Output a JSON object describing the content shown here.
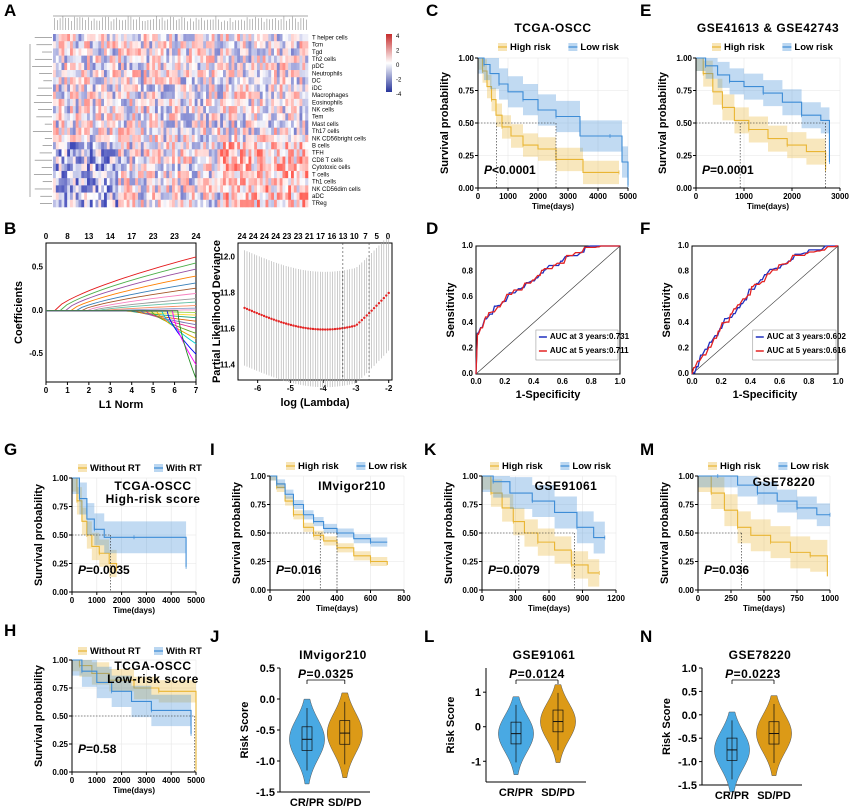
{
  "panel_labels": [
    "A",
    "B",
    "C",
    "D",
    "E",
    "F",
    "G",
    "H",
    "I",
    "J",
    "K",
    "L",
    "M",
    "N"
  ],
  "colors": {
    "high": "#e9b533",
    "low": "#3d8cd6",
    "without_rt": "#e9b533",
    "with_rt": "#3d8cd6",
    "roc3": "#1f2fbf",
    "roc5": "#e32222",
    "violin_low": "#49a9e3",
    "violin_high": "#dc9a17",
    "heat_pos": "#c62c2c",
    "heat_neg": "#27349a"
  },
  "heatmap": {
    "rows": [
      "T helper cells",
      "Tcm",
      "Tgd",
      "Th2 cells",
      "pDC",
      "Neutrophils",
      "DC",
      "iDC",
      "Macrophages",
      "Eosinophils",
      "NK cells",
      "Tem",
      "Mast cells",
      "Th17 cells",
      "NK CD56bright cells",
      "B cells",
      "TFH",
      "CD8 T cells",
      "Cytotoxic cells",
      "T cells",
      "Th1 cells",
      "NK CD56dim cells",
      "aDC",
      "TReg"
    ],
    "scale_ticks": [
      "4",
      "2",
      "0",
      "-2",
      "-4"
    ]
  },
  "lasso_coef": {
    "top_ticks": [
      "0",
      "8",
      "13",
      "14",
      "17",
      "23",
      "23",
      "24"
    ],
    "x_ticks": [
      "0",
      "1",
      "2",
      "3",
      "4",
      "5",
      "6",
      "7"
    ],
    "y_ticks": [
      "0.5",
      "0.0",
      "-0.5"
    ],
    "xlabel": "L1 Norm",
    "ylabel": "Coefficients"
  },
  "lasso_cv": {
    "top_ticks": [
      "24",
      "24",
      "24",
      "24",
      "23",
      "23",
      "21",
      "17",
      "16",
      "13",
      "10",
      "7",
      "5",
      "0"
    ],
    "x_ticks": [
      "-6",
      "-5",
      "-4",
      "-3",
      "-2"
    ],
    "y_ticks": [
      "12.0",
      "11.8",
      "11.6",
      "11.4"
    ],
    "xlabel": "log (Lambda)",
    "ylabel": "Partial Likelihood Deviance"
  },
  "km": {
    "C": {
      "title": "TCGA-OSCC",
      "legend": [
        "High risk",
        "Low risk"
      ],
      "pval": "<0.0001",
      "x_ticks": [
        "0",
        "1000",
        "2000",
        "3000",
        "4000",
        "5000"
      ],
      "xmax": 5000,
      "xlabel": "Time(days)",
      "ylabel": "Survival probability",
      "y_ticks": [
        "0.00",
        "0.25",
        "0.50",
        "0.75",
        "1.00"
      ]
    },
    "E": {
      "title": "GSE41613 & GSE42743",
      "legend": [
        "High risk",
        "Low risk"
      ],
      "pval": "=0.0001",
      "x_ticks": [
        "0",
        "1000",
        "2000",
        "3000"
      ],
      "xmax": 3000,
      "xlabel": "Time(days)",
      "ylabel": "Survival probability",
      "y_ticks": [
        "0.00",
        "0.25",
        "0.50",
        "0.75",
        "1.00"
      ]
    },
    "G": {
      "title": "",
      "legend": [
        "Without RT",
        "With RT"
      ],
      "inset": [
        "TCGA-OSCC",
        "High-risk score"
      ],
      "pval": "=0.0035",
      "x_ticks": [
        "0",
        "1000",
        "2000",
        "3000",
        "4000",
        "5000"
      ],
      "xmax": 5000,
      "xlabel": "Time(days)",
      "ylabel": "Survival probability",
      "y_ticks": [
        "0.00",
        "0.25",
        "0.50",
        "0.75",
        "1.00"
      ]
    },
    "H": {
      "title": "",
      "legend": [
        "Without RT",
        "With RT"
      ],
      "inset": [
        "TCGA-OSCC",
        "Low-risk score"
      ],
      "pval": "=0.58",
      "x_ticks": [
        "0",
        "1000",
        "2000",
        "3000",
        "4000",
        "5000"
      ],
      "xmax": 5000,
      "xlabel": "Time(days)",
      "ylabel": "Survival probability",
      "y_ticks": [
        "0.00",
        "0.25",
        "0.50",
        "0.75",
        "1.00"
      ]
    },
    "I": {
      "title": "",
      "legend": [
        "High risk",
        "Low risk"
      ],
      "inset": [
        "IMvigor210"
      ],
      "pval": "=0.016",
      "x_ticks": [
        "0",
        "200",
        "400",
        "600",
        "800"
      ],
      "xmax": 800,
      "xlabel": "Time(days)",
      "ylabel": "Survival probability",
      "y_ticks": [
        "0.00",
        "0.25",
        "0.50",
        "0.75",
        "1.00"
      ]
    },
    "K": {
      "title": "",
      "legend": [
        "High risk",
        "Low risk"
      ],
      "inset": [
        "GSE91061"
      ],
      "pval": "=0.0079",
      "x_ticks": [
        "0",
        "300",
        "600",
        "900",
        "1200"
      ],
      "xmax": 1200,
      "xlabel": "Time(days)",
      "ylabel": "Survival probability",
      "y_ticks": [
        "0.00",
        "0.25",
        "0.50",
        "0.75",
        "1.00"
      ]
    },
    "M": {
      "title": "",
      "legend": [
        "High risk",
        "Low risk"
      ],
      "inset": [
        "GSE78220"
      ],
      "pval": "=0.036",
      "x_ticks": [
        "0",
        "250",
        "500",
        "750",
        "1000"
      ],
      "xmax": 1000,
      "xlabel": "Time(days)",
      "ylabel": "Survival probability",
      "y_ticks": [
        "0.00",
        "0.25",
        "0.50",
        "0.75",
        "1.00"
      ]
    }
  },
  "roc": {
    "D": {
      "xlabel": "1-Specificity",
      "ylabel": "Sensitivity",
      "ticks": [
        "0.0",
        "0.2",
        "0.4",
        "0.6",
        "0.8",
        "1.0"
      ],
      "legend": [
        "AUC at 3 years:0.731",
        "AUC at 5 years:0.711"
      ]
    },
    "F": {
      "xlabel": "1-Specificity",
      "ylabel": "Sensitivity",
      "ticks": [
        "0.0",
        "0.2",
        "0.4",
        "0.6",
        "0.8",
        "1.0"
      ],
      "legend": [
        "AUC at 3 years:0.602",
        "AUC at 5 years:0.616"
      ]
    }
  },
  "violin": {
    "J": {
      "title": "IMvigor210",
      "pval": "=0.0325",
      "groups": [
        "CR/PR",
        "SD/PD"
      ],
      "ylabel": "Risk Score",
      "y_ticks": [
        "0.5",
        "0.0",
        "-0.5",
        "-1.0",
        "-1.5"
      ],
      "ymin": -1.5,
      "ymax": 0.5,
      "medians": [
        -0.65,
        -0.55
      ]
    },
    "L": {
      "title": "GSE91061",
      "pval": "=0.0124",
      "groups": [
        "CR/PR",
        "SD/PD"
      ],
      "ylabel": "Risk Score",
      "y_ticks": [
        "1",
        "0",
        "-1"
      ],
      "ymin": -1.6,
      "ymax": 1.7,
      "medians": [
        -0.2,
        0.15
      ]
    },
    "N": {
      "title": "GSE78220",
      "pval": "=0.0223",
      "groups": [
        "CR/PR",
        "SD/PD"
      ],
      "ylabel": "Risk Score",
      "y_ticks": [
        "1.0",
        "0.5",
        "0.0",
        "-0.5",
        "-1.0",
        "-1.5"
      ],
      "ymin": -1.5,
      "ymax": 1.0,
      "medians": [
        -0.75,
        -0.4
      ]
    }
  }
}
